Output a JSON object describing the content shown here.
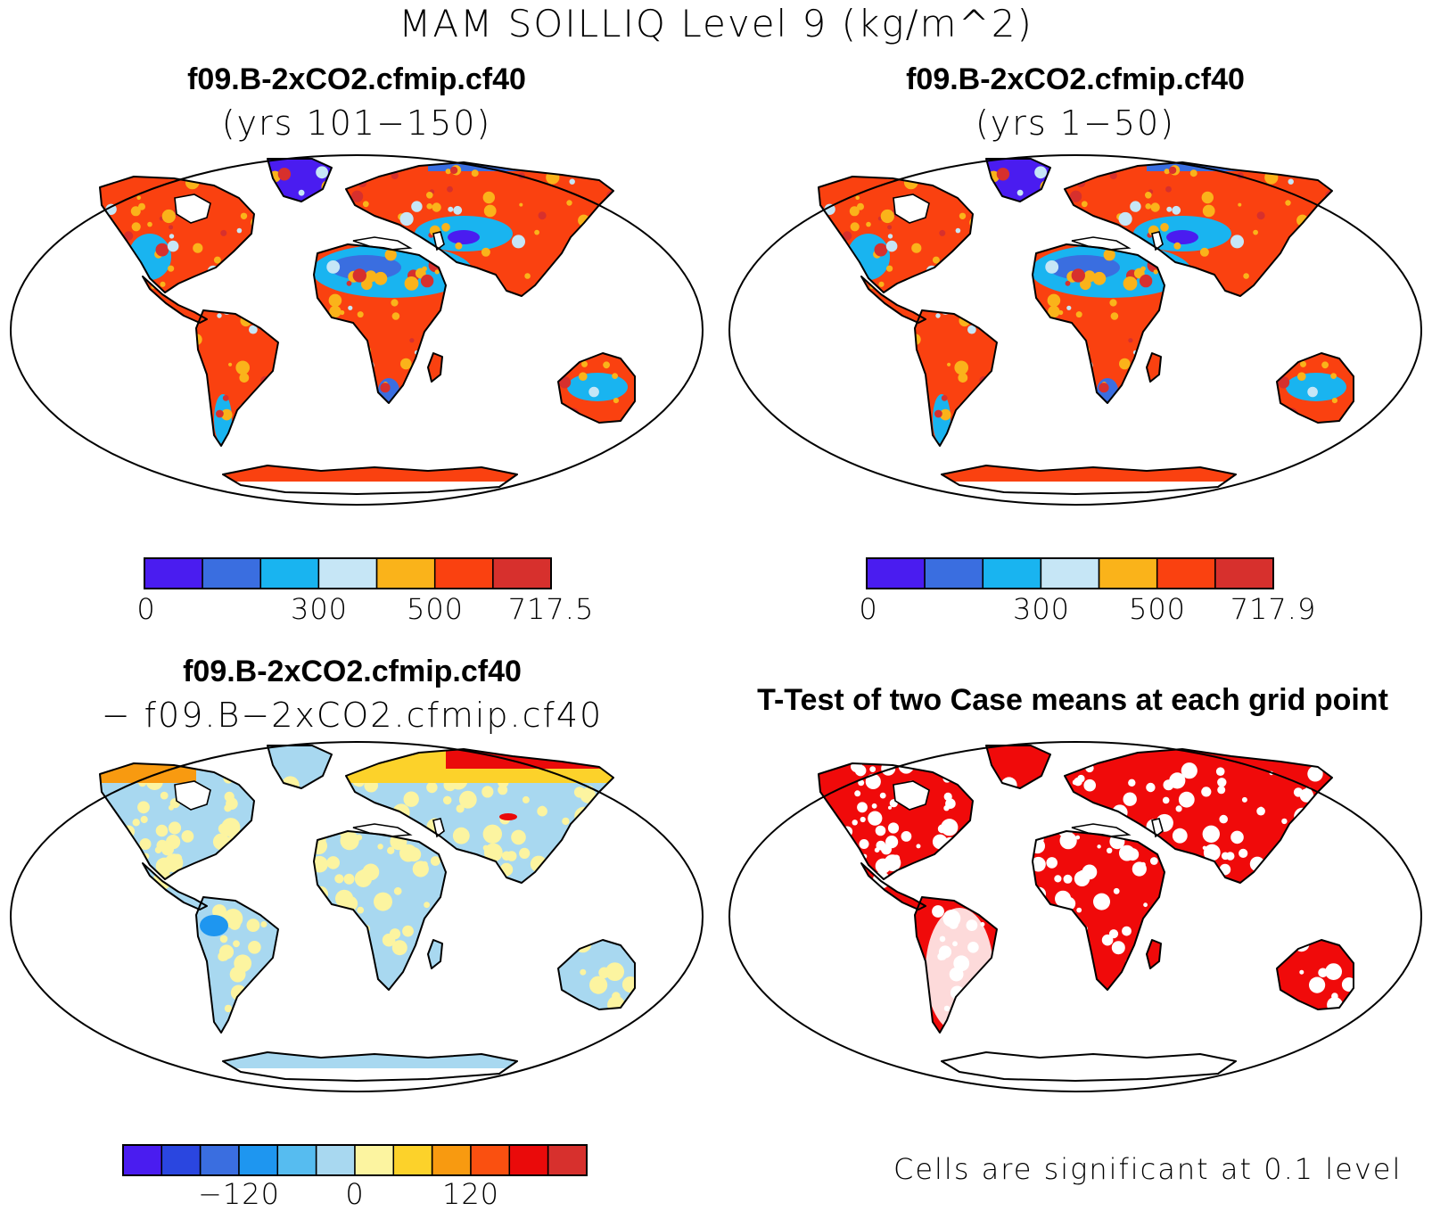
{
  "title": "MAM SOILLIQ Level 9 (kg/m^2)",
  "panels": {
    "top_left": {
      "title": "f09.B-2xCO2.cfmip.cf40",
      "subtitle": "(yrs 101−150)"
    },
    "top_right": {
      "title": "f09.B-2xCO2.cfmip.cf40",
      "subtitle": "(yrs 1−50)"
    },
    "bottom_left": {
      "title": "f09.B-2xCO2.cfmip.cf40",
      "subtitle": "− f09.B−2xCO2.cfmip.cf40"
    },
    "bottom_right": {
      "title": "T-Test of two Case means at each grid point",
      "note": "Cells are significant at 0.1 level"
    }
  },
  "colorbars": {
    "top_left": {
      "colors": [
        "#4a1cf0",
        "#3a6ee0",
        "#19b4f0",
        "#c6e6f6",
        "#fab31a",
        "#fa4110",
        "#d7302d"
      ],
      "labels": [
        "0",
        "300",
        "500",
        "717.5"
      ]
    },
    "top_right": {
      "colors": [
        "#4a1cf0",
        "#3a6ee0",
        "#19b4f0",
        "#c6e6f6",
        "#fab31a",
        "#fa4110",
        "#d7302d"
      ],
      "labels": [
        "0",
        "300",
        "500",
        "717.9"
      ]
    },
    "bottom_left": {
      "colors": [
        "#4a1cf0",
        "#2a46e0",
        "#3a6ee0",
        "#1e96f0",
        "#56bcf0",
        "#a8d8f0",
        "#fcf4a0",
        "#fcd22a",
        "#f89a10",
        "#fa5010",
        "#ea0a0a",
        "#d7302d"
      ],
      "labels": [
        "−120",
        "0",
        "120"
      ]
    }
  },
  "colors": {
    "ttest_significant": "#f00a0a",
    "land_outline": "#000000"
  }
}
